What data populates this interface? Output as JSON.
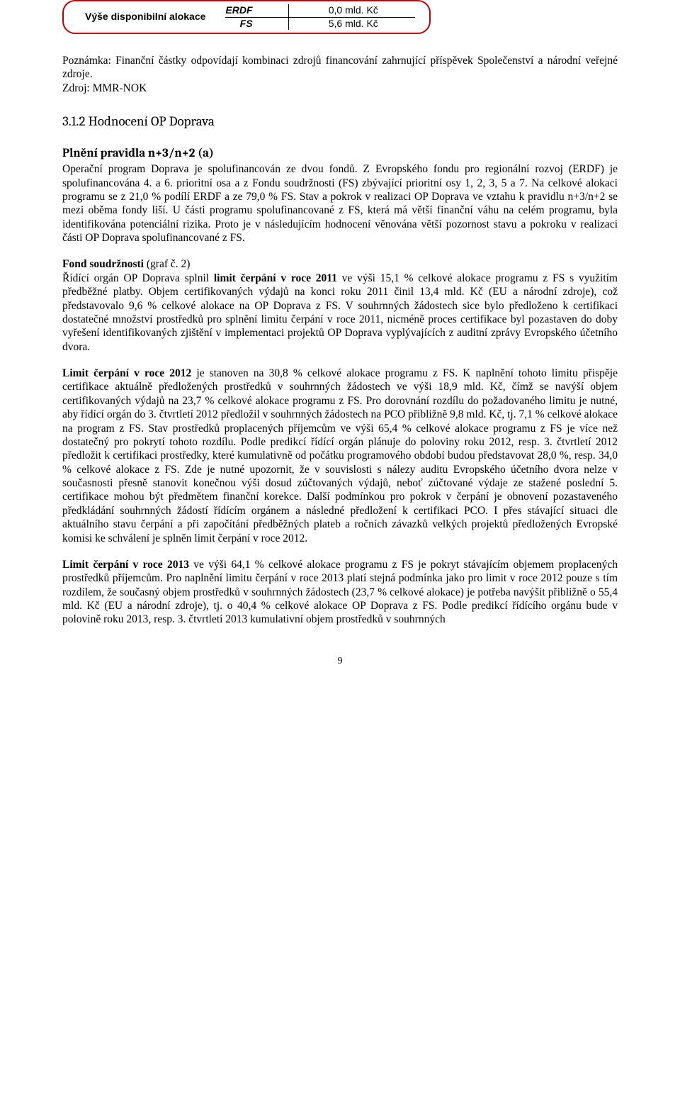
{
  "allocation": {
    "label": "Výše disponibilní alokace",
    "rows": [
      {
        "fund": "ERDF",
        "value": "0,0 mld. Kč"
      },
      {
        "fund": "FS",
        "value": "5,6 mld. Kč"
      }
    ]
  },
  "note": "Poznámka: Finanční částky odpovídají kombinaci zdrojů financování zahrnující příspěvek Společenství a národní veřejné zdroje.",
  "source": "Zdroj: MMR-NOK",
  "section": {
    "number_title": "3.1.2 Hodnocení OP Doprava",
    "subheading": "Plnění pravidla n+3/n+2 (a)"
  },
  "para_intro": "Operační program Doprava je spolufinancován ze dvou fondů. Z Evropského fondu pro regionální rozvoj (ERDF) je spolufinancována 4. a 6. prioritní osa a z Fondu soudržnosti (FS) zbývající prioritní osy 1, 2, 3, 5 a 7. Na celkové alokaci programu se z 21,0 % podílí ERDF a ze 79,0 % FS. Stav a pokrok v realizaci OP Doprava ve vztahu k pravidlu n+3/n+2 se mezi oběma fondy liší. U části programu spolufinancované z FS, která má větší finanční váhu na celém programu, byla identifikována potenciální rizika. Proto je v následujícím hodnocení věnována větší pozornost stavu a pokroku v realizaci části OP Doprava spolufinancované z FS.",
  "fs_heading": "Fond soudržnosti",
  "fs_heading_suffix": " (graf č. 2)",
  "para_fs_1a": "Řídící orgán OP Doprava splnil ",
  "para_fs_1b": "limit čerpání v roce 2011",
  "para_fs_1c": " ve výši 15,1 % celkové alokace programu z FS s využitím předběžné platby. Objem certifikovaných výdajů na konci roku 2011 činil 13,4 mld. Kč (EU a národní zdroje), což představovalo 9,6 % celkové alokace na OP Doprava z FS. V souhrnných žádostech sice bylo předloženo k certifikaci dostatečné množství prostředků pro splnění limitu čerpání v roce 2011, nicméně proces certifikace byl pozastaven do doby vyřešení identifikovaných zjištění v implementaci projektů OP Doprava vyplývajících z auditní zprávy Evropského účetního dvora.",
  "para_2012a": "Limit čerpání v roce 2012",
  "para_2012b": " je stanoven na 30,8 % celkové alokace programu z FS. K naplnění tohoto limitu přispěje certifikace aktuálně předložených prostředků v souhrnných žádostech ve výši 18,9 mld. Kč, čímž se navýší objem certifikovaných výdajů na 23,7 % celkové alokace programu z FS. Pro dorovnání rozdílu do požadovaného limitu je nutné, aby řídící orgán do 3. čtvrtletí 2012 předložil v souhrnných žádostech na PCO přibližně 9,8 mld. Kč, tj. 7,1 % celkové alokace na program z FS. Stav prostředků proplacených příjemcům ve výši 65,4 % celkové alokace programu z FS je více než dostatečný pro pokrytí tohoto rozdílu. Podle predikcí řídící orgán plánuje do poloviny roku 2012, resp. 3. čtvrtletí 2012 předložit k certifikaci prostředky, které kumulativně od počátku programového období budou představovat 28,0 %, resp. 34,0 % celkové alokace z FS. Zde je nutné upozornit, že v souvislosti s nálezy auditu Evropského účetního dvora nelze v současnosti přesně stanovit konečnou výši dosud zúčtovaných výdajů, neboť zúčtované výdaje ze stažené poslední 5. certifikace mohou být předmětem finanční korekce. Další podmínkou pro pokrok v čerpání je obnovení pozastaveného předkládání souhrnných žádostí řídícím orgánem a následné předložení k certifikaci PCO. I přes stávající situaci dle aktuálního stavu čerpání a při započítání předběžných plateb a ročních závazků velkých projektů předložených Evropské komisi ke schválení je splněn limit čerpání v roce 2012.",
  "para_2013a": "Limit čerpání v roce 2013",
  "para_2013b": " ve výši 64,1 % celkové alokace programu z FS je pokryt stávajícím objemem proplacených prostředků příjemcům. Pro naplnění limitu čerpání v roce 2013 platí stejná podmínka jako pro limit v roce 2012 pouze s tím rozdílem, že současný objem prostředků v souhrnných žádostech (23,7 % celkové alokace) je potřeba navýšit přibližně o 55,4 mld. Kč (EU a národní zdroje), tj. o 40,4 % celkové alokace OP Doprava z FS. Podle predikcí řídícího orgánu bude v polovině roku 2013, resp. 3. čtvrtletí 2013 kumulativní objem prostředků v souhrnných",
  "page_number": "9"
}
